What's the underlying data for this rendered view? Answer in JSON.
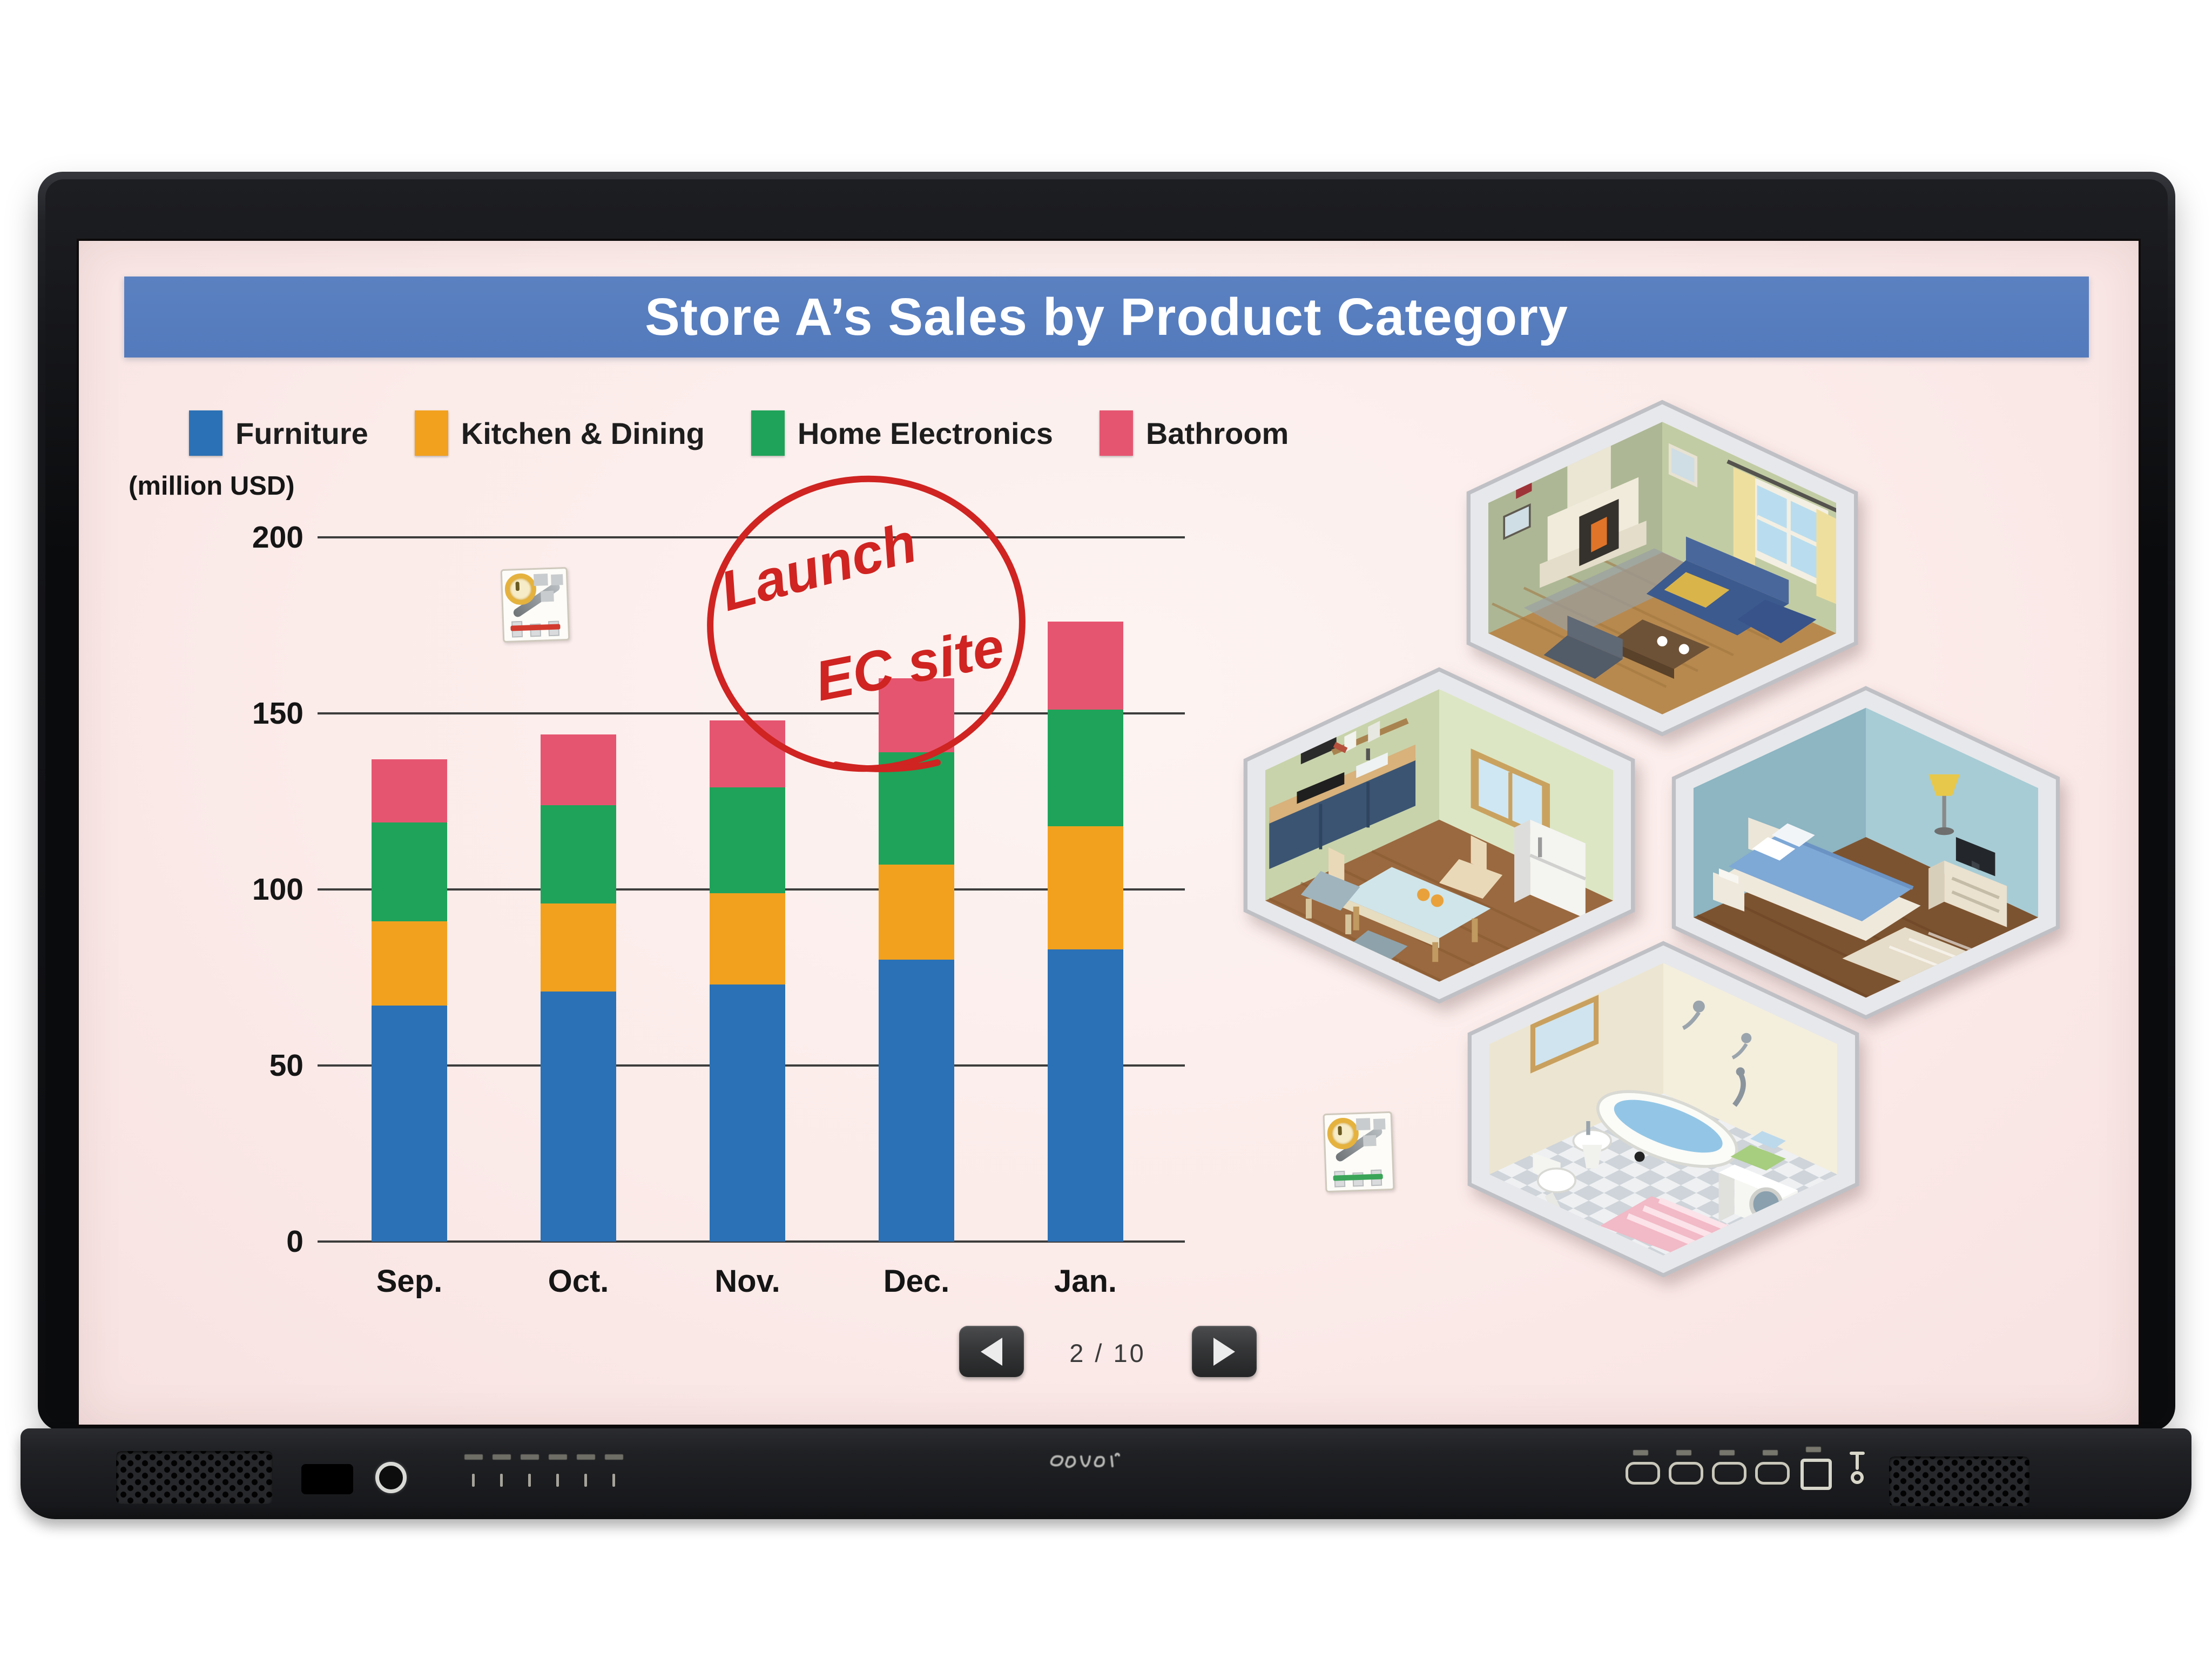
{
  "screen": {
    "title": "Store A’s Sales by Product Category",
    "unit_label": "(million USD)",
    "annotation": {
      "line1": "Launch",
      "line2": "EC site",
      "color": "#cf2421"
    },
    "pager": {
      "current": "2 / 10"
    }
  },
  "chart_data": {
    "type": "bar",
    "stacked": true,
    "title": "Store A’s Sales by Product Category",
    "ylabel": "(million USD)",
    "unit": "million USD",
    "categories": [
      "Sep.",
      "Oct.",
      "Nov.",
      "Dec.",
      "Jan."
    ],
    "series": [
      {
        "name": "Furniture",
        "color": "#2b71b5",
        "values": [
          67,
          71,
          73,
          80,
          83
        ]
      },
      {
        "name": "Kitchen & Dining",
        "color": "#f2a11f",
        "values": [
          24,
          25,
          26,
          27,
          35
        ]
      },
      {
        "name": "Home Electronics",
        "color": "#1fa35a",
        "values": [
          28,
          28,
          30,
          32,
          33
        ]
      },
      {
        "name": "Bathroom",
        "color": "#e65570",
        "values": [
          18,
          20,
          19,
          21,
          25
        ]
      }
    ],
    "ylim": [
      0,
      200
    ],
    "yticks": [
      0,
      50,
      100,
      150,
      200
    ],
    "grid": true,
    "legend_position": "top-left"
  },
  "illustrations": [
    {
      "name": "living-room"
    },
    {
      "name": "kitchen"
    },
    {
      "name": "bedroom"
    },
    {
      "name": "bathroom"
    }
  ],
  "stamps": [
    {
      "name": "chart-clock-stamp-red",
      "accent": "#d23a2e"
    },
    {
      "name": "chart-clock-stamp-green",
      "accent": "#3aa558"
    }
  ],
  "colors": {
    "banner_blue": "#5b81c1",
    "screen_pink": "#fbebe9",
    "bezel_black": "#141518",
    "annotation_red": "#cf2421"
  }
}
